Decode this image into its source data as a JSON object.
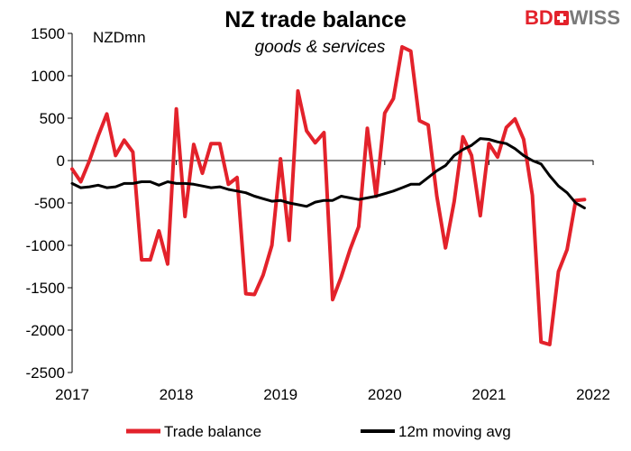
{
  "chart_data": {
    "type": "line",
    "title": "NZ trade balance",
    "subtitle": "goods & services",
    "unit_label": "NZDmn",
    "ylim": [
      -2500,
      1500
    ],
    "ytick_step": 500,
    "x_range": [
      2017.0,
      2022.0
    ],
    "x_ticks": [
      "2017",
      "2018",
      "2019",
      "2020",
      "2021",
      "2022"
    ],
    "grid": false,
    "legend_position": "bottom",
    "x": [
      2017.0,
      2017.0833,
      2017.1667,
      2017.25,
      2017.3333,
      2017.4167,
      2017.5,
      2017.5833,
      2017.6667,
      2017.75,
      2017.8333,
      2017.9167,
      2018.0,
      2018.0833,
      2018.1667,
      2018.25,
      2018.3333,
      2018.4167,
      2018.5,
      2018.5833,
      2018.6667,
      2018.75,
      2018.8333,
      2018.9167,
      2019.0,
      2019.0833,
      2019.1667,
      2019.25,
      2019.3333,
      2019.4167,
      2019.5,
      2019.5833,
      2019.6667,
      2019.75,
      2019.8333,
      2019.9167,
      2020.0,
      2020.0833,
      2020.1667,
      2020.25,
      2020.3333,
      2020.4167,
      2020.5,
      2020.5833,
      2020.6667,
      2020.75,
      2020.8333,
      2020.9167,
      2021.0,
      2021.0833,
      2021.1667,
      2021.25,
      2021.3333,
      2021.4167,
      2021.5,
      2021.5833,
      2021.6667,
      2021.75,
      2021.8333,
      2021.9167
    ],
    "series": [
      {
        "name": "Trade balance",
        "color": "#e3222b",
        "values": [
          -100,
          -250,
          0,
          290,
          550,
          60,
          240,
          100,
          -1170,
          -1170,
          -830,
          -1220,
          610,
          -660,
          190,
          -150,
          200,
          200,
          -280,
          -200,
          -1570,
          -1580,
          -1350,
          -1000,
          20,
          -940,
          820,
          350,
          210,
          330,
          -1640,
          -1370,
          -1050,
          -780,
          380,
          -420,
          560,
          730,
          1340,
          1290,
          470,
          420,
          -420,
          -1030,
          -480,
          280,
          60,
          -650,
          200,
          40,
          390,
          490,
          250,
          -410,
          -2140,
          -2170,
          -1310,
          -1050,
          -470,
          -460
        ]
      },
      {
        "name": "12m moving avg",
        "color": "#000000",
        "values": [
          -270,
          -320,
          -310,
          -290,
          -320,
          -310,
          -270,
          -270,
          -250,
          -250,
          -290,
          -250,
          -270,
          -270,
          -280,
          -300,
          -320,
          -310,
          -340,
          -360,
          -380,
          -420,
          -450,
          -480,
          -470,
          -500,
          -520,
          -540,
          -490,
          -470,
          -470,
          -420,
          -440,
          -460,
          -440,
          -420,
          -390,
          -360,
          -320,
          -280,
          -280,
          -200,
          -120,
          -60,
          60,
          130,
          180,
          260,
          250,
          220,
          200,
          140,
          60,
          0,
          -40,
          -180,
          -300,
          -380,
          -500,
          -560
        ]
      }
    ]
  }
}
